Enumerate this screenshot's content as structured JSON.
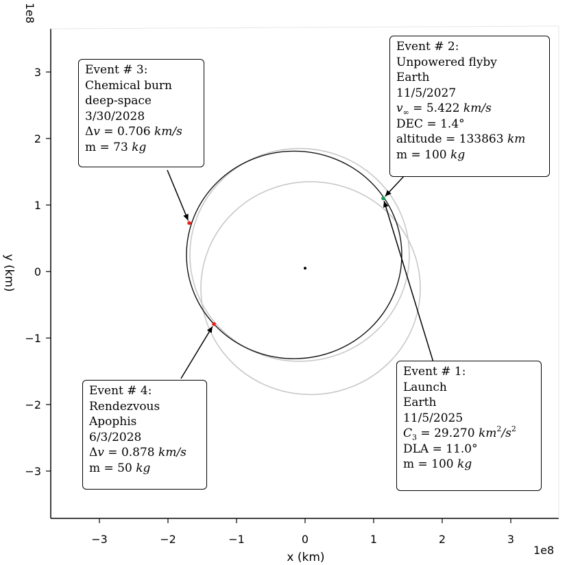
{
  "chart_data": {
    "type": "scatter",
    "xlabel": "x (km)",
    "ylabel": "y (km)",
    "x_offset_label": "1e8",
    "y_offset_label": "1e8",
    "xlim": [
      -3.7,
      3.7
    ],
    "ylim": [
      -3.7,
      3.7
    ],
    "x_ticks": [
      -3,
      -2,
      -1,
      0,
      1,
      2,
      3
    ],
    "y_ticks": [
      -3,
      -2,
      -1,
      0,
      1,
      2,
      3
    ],
    "x_tick_labels": [
      "−3",
      "−2",
      "−1",
      "0",
      "1",
      "2",
      "3"
    ],
    "y_tick_labels": [
      "−3",
      "−2",
      "−1",
      "0",
      "1",
      "2",
      "3"
    ],
    "grid": false,
    "orbits": [
      {
        "center_x": -0.08,
        "center_y": 0.25,
        "rx": 1.6,
        "ry": 1.6,
        "color": "#c8c8c8"
      },
      {
        "center_x": 0.08,
        "center_y": -0.25,
        "rx": 1.6,
        "ry": 1.6,
        "color": "#c8c8c8"
      },
      {
        "center_x": -0.16,
        "center_y": 0.25,
        "rx": 1.57,
        "ry": 1.56,
        "color": "#111111"
      }
    ],
    "sun": {
      "x": 0,
      "y": 0.05
    },
    "event_points": [
      {
        "x": 1.14,
        "y": 1.1,
        "color": "#1a9e5e"
      },
      {
        "x": 1.14,
        "y": 1.1,
        "color": "#1a9e5e"
      },
      {
        "x": -1.69,
        "y": 0.73,
        "color": "#e8201a"
      },
      {
        "x": -1.33,
        "y": -0.79,
        "color": "#e8201a"
      }
    ],
    "events": [
      {
        "title": "Event # 1:",
        "type": "Launch",
        "body": "Earth",
        "date": "11/5/2025",
        "detail_1": "C3 = 29.270 km2/s2",
        "detail_2": "DLA = 11.0°",
        "mass": "m = 100 kg"
      },
      {
        "title": "Event # 2:",
        "type": "Unpowered flyby",
        "body": "Earth",
        "date": "11/5/2027",
        "detail_1": "v∞ = 5.422 km/s",
        "detail_2": "DEC = 1.4°",
        "detail_3": "altitude = 133863 km",
        "mass": "m = 100 kg"
      },
      {
        "title": "Event # 3:",
        "type": "Chemical burn",
        "body": "deep-space",
        "date": "3/30/2028",
        "detail_1": "Δv = 0.706 km/s",
        "mass": "m = 73 kg"
      },
      {
        "title": "Event # 4:",
        "type": "Rendezvous",
        "body": "Apophis",
        "date": "6/3/2028",
        "detail_1": "Δv = 0.878 km/s",
        "mass": "m = 50 kg"
      }
    ]
  },
  "events_display": {
    "e1": {
      "title": "Event # 1:",
      "type": "Launch",
      "body": "Earth",
      "date": "11/5/2025",
      "c3_value": "29.270",
      "dla": "DLA = 11.0°",
      "mass_value": "100"
    },
    "e2": {
      "title": "Event # 2:",
      "type": "Unpowered flyby",
      "body": "Earth",
      "date": "11/5/2027",
      "vinf_value": "5.422",
      "dec": "DEC = 1.4°",
      "alt_value": "133863",
      "mass_value": "100"
    },
    "e3": {
      "title": "Event # 3:",
      "type": "Chemical burn",
      "body": "deep-space",
      "date": "3/30/2028",
      "dv_value": "0.706",
      "mass_value": "73"
    },
    "e4": {
      "title": "Event # 4:",
      "type": "Rendezvous",
      "body": "Apophis",
      "date": "6/3/2028",
      "dv_value": "0.878",
      "mass_value": "50"
    }
  }
}
